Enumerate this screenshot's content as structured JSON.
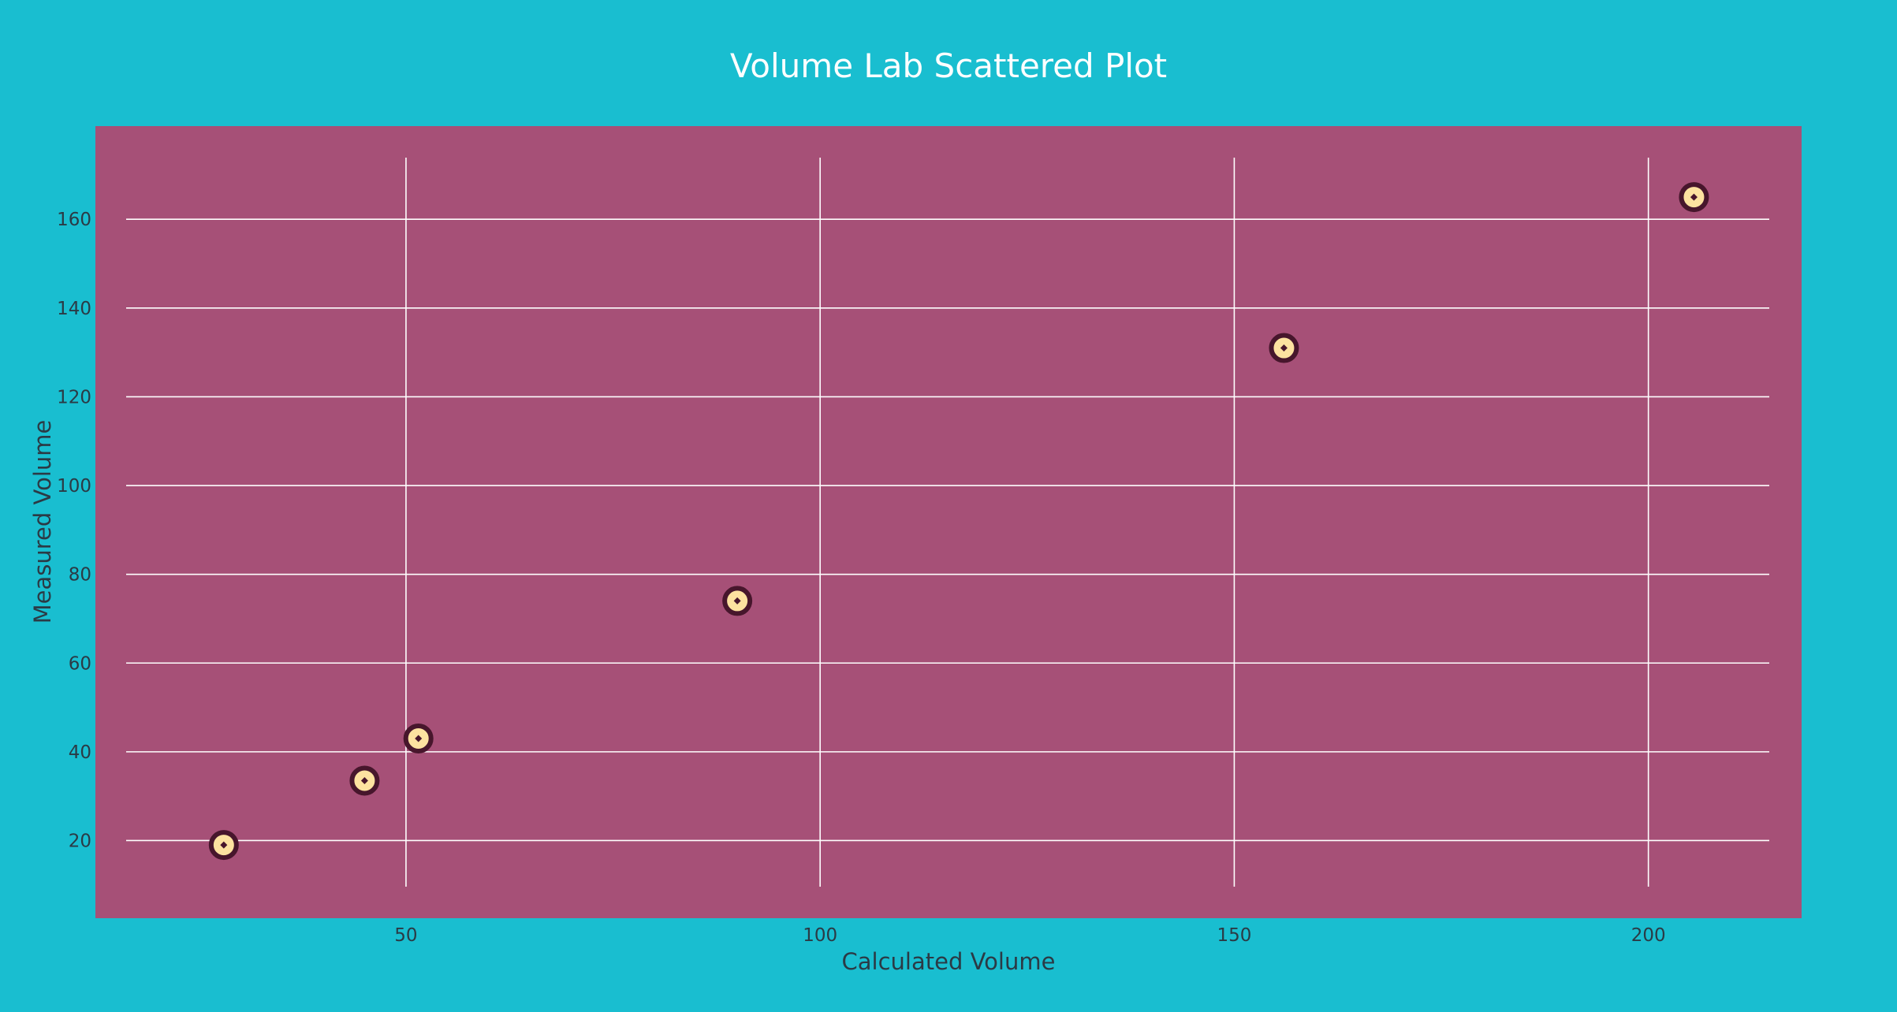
{
  "chart_data": {
    "type": "scatter",
    "title": "Volume Lab Scattered Plot",
    "xlabel": "Calculated Volume",
    "ylabel": "Measured Volume",
    "xlim": [
      12.5,
      218.5
    ],
    "ylim": [
      2.5,
      181
    ],
    "x_ticks": [
      50,
      100,
      150,
      200
    ],
    "y_ticks": [
      20,
      40,
      60,
      80,
      100,
      120,
      140,
      160
    ],
    "grid": true,
    "series": [
      {
        "x": [
          28,
          45,
          51.5,
          90,
          156,
          205.5
        ],
        "y": [
          19,
          33.5,
          43,
          74,
          131,
          165
        ]
      }
    ],
    "colors": {
      "page_background": "#19bed0",
      "plot_background": "#a65077",
      "marker_fill": "#fde2a0",
      "marker_outline": "#47162c",
      "marker_center": "#47162c",
      "grid": "#ffffff",
      "title_text": "#ffffff",
      "axis_text": "#2b3a45"
    }
  }
}
